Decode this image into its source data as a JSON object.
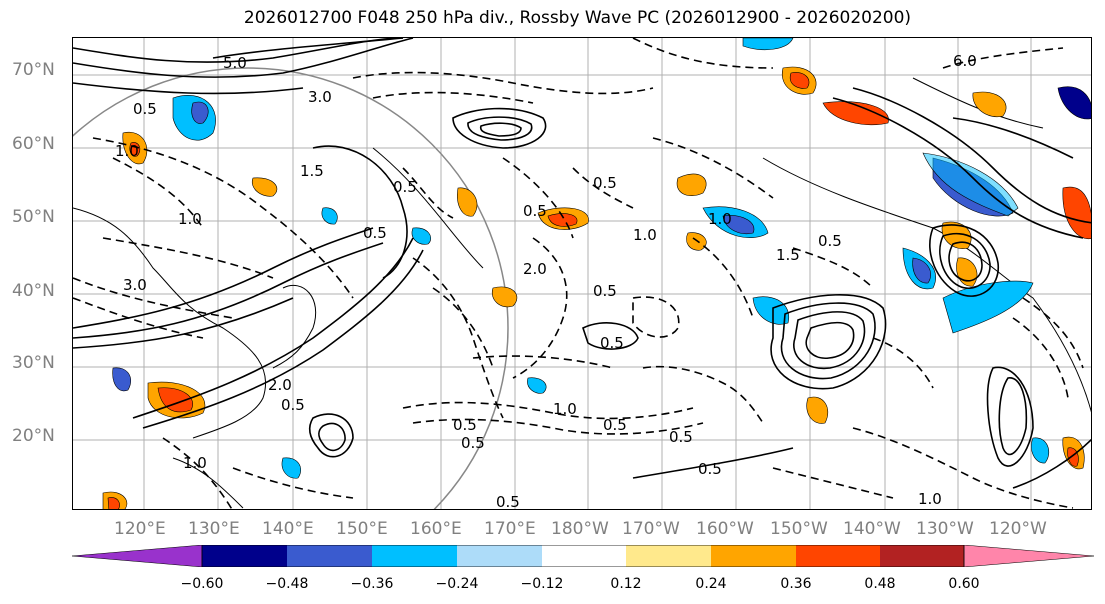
{
  "title": "2026012700 F048 250 hPa div., Rossby Wave PC (2026012900 - 2026020200)",
  "lat_labels": [
    "70°N",
    "60°N",
    "50°N",
    "40°N",
    "30°N",
    "20°N"
  ],
  "lon_labels": [
    "120°E",
    "130°E",
    "140°E",
    "150°E",
    "160°E",
    "170°E",
    "180°W",
    "170°W",
    "160°W",
    "150°W",
    "140°W",
    "130°W",
    "120°W"
  ],
  "colorbar": {
    "colors": [
      "#9932CC",
      "#00008B",
      "#3A5BCF",
      "#00BFFF",
      "#ADDCF9",
      "#FFFFFF",
      "#FFE98C",
      "#FFA500",
      "#FF4500",
      "#B22222",
      "#FF85AA"
    ],
    "ticks": [
      "−0.60",
      "−0.48",
      "−0.36",
      "−0.24",
      "−0.12",
      "0.12",
      "0.24",
      "0.36",
      "0.48",
      "0.60"
    ]
  },
  "contour_labels": [
    "0.5",
    "1.0",
    "1.5",
    "2.0",
    "3.0",
    "5.0",
    "6.0",
    "0.5",
    "1.0",
    "0.5",
    "1.5",
    "2.0",
    "0.5",
    "0.5",
    "1.0",
    "0.5",
    "0.5",
    "1.0",
    "0.5",
    "1.5",
    "3.0",
    "0.5",
    "0.5",
    "0.5",
    "1.0",
    "0.5",
    "0.5",
    "2.0",
    "0.5",
    "1.0",
    "1.0",
    "0.5"
  ]
}
